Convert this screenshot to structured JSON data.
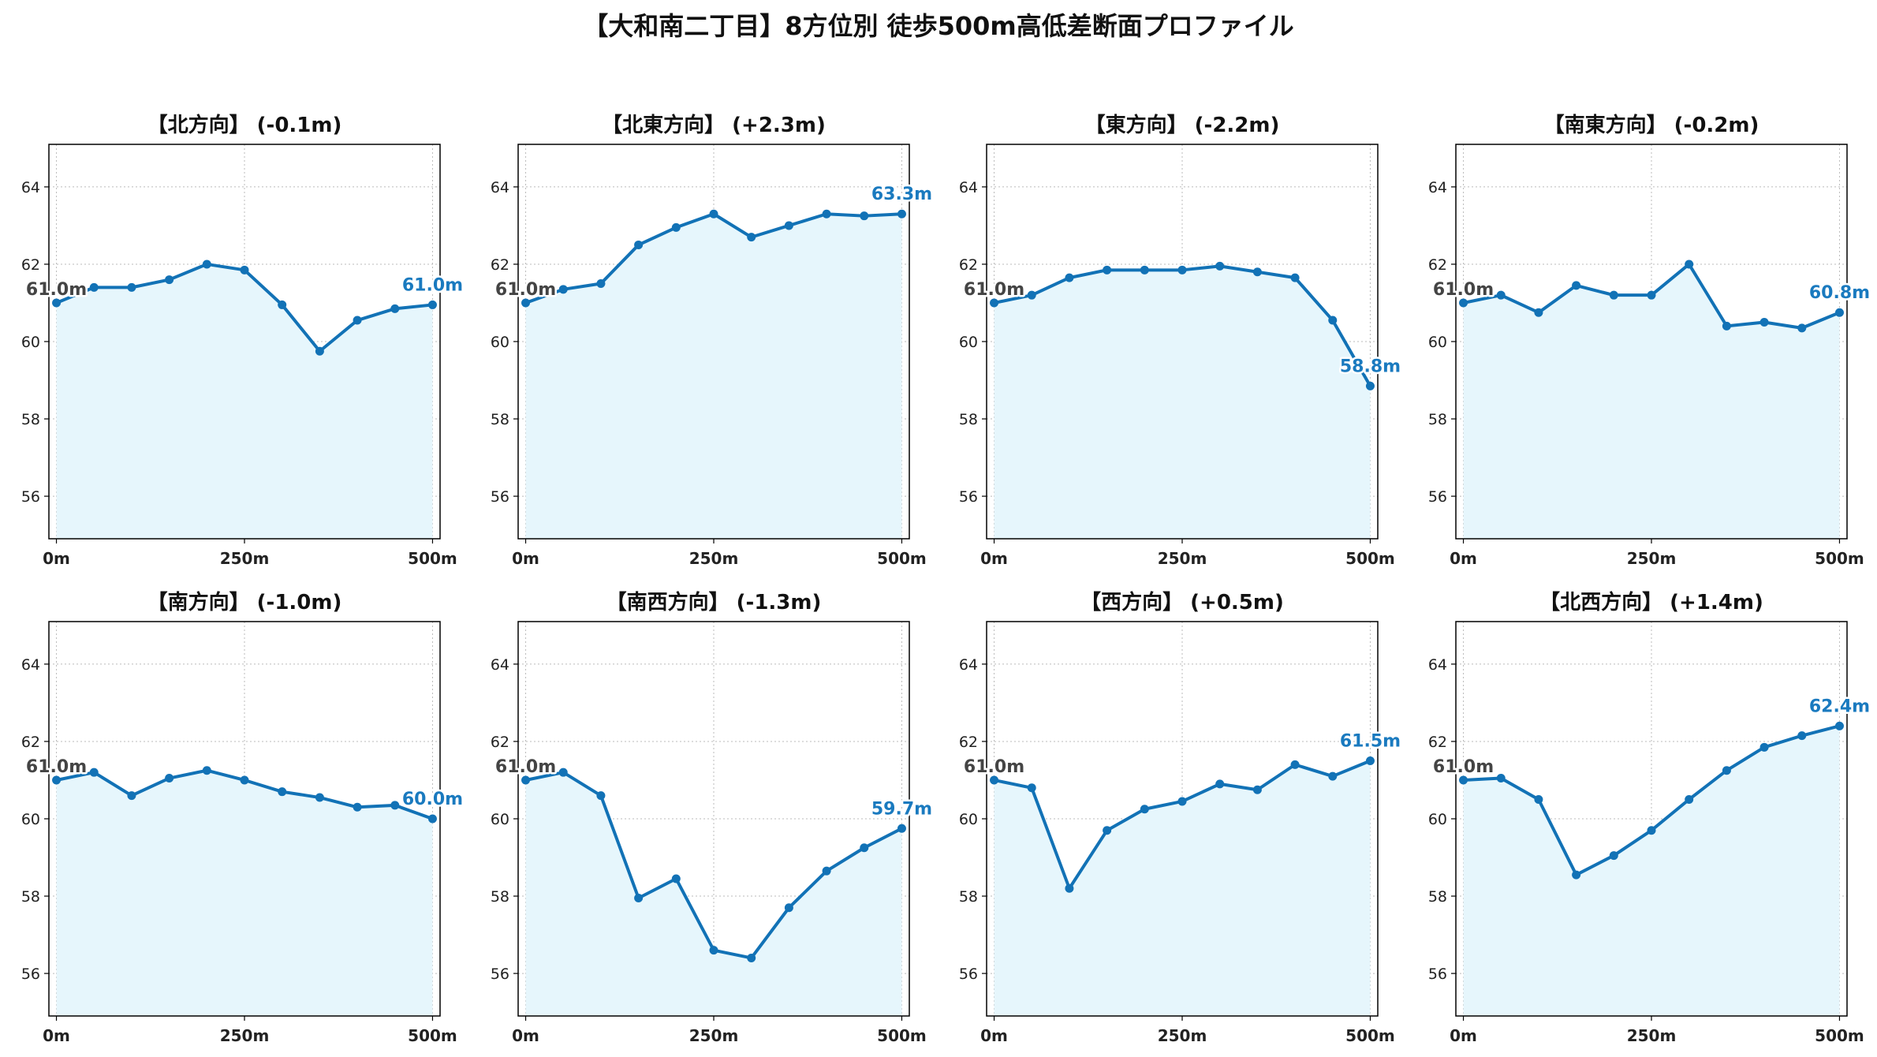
{
  "title": "【大和南二丁目】8方位別 徒歩500m高低差断面プロファイル",
  "colors": {
    "line": "#1272b6",
    "fill": "#e6f6fc",
    "grid": "#bbbbbb",
    "start_label": "#444444",
    "end_label": "#1a7abf"
  },
  "chart_data": [
    {
      "type": "area",
      "title": "【北方向】 (-0.1m)",
      "x": [
        0,
        50,
        100,
        150,
        200,
        250,
        300,
        350,
        400,
        450,
        500
      ],
      "y": [
        61.0,
        61.4,
        61.4,
        61.6,
        62.0,
        61.85,
        60.95,
        59.75,
        60.55,
        60.85,
        60.95
      ],
      "start_label": "61.0m",
      "end_label": "61.0m",
      "xticks": [
        0,
        250,
        500
      ],
      "xtick_labels": [
        "0m",
        "250m",
        "500m"
      ],
      "yticks": [
        56,
        58,
        60,
        62,
        64
      ],
      "ylim": [
        54.9,
        65.1
      ],
      "xlim": [
        -10,
        510
      ],
      "grid": true
    },
    {
      "type": "area",
      "title": "【北東方向】 (+2.3m)",
      "x": [
        0,
        50,
        100,
        150,
        200,
        250,
        300,
        350,
        400,
        450,
        500
      ],
      "y": [
        61.0,
        61.35,
        61.5,
        62.5,
        62.95,
        63.3,
        62.7,
        63.0,
        63.3,
        63.25,
        63.3
      ],
      "start_label": "61.0m",
      "end_label": "63.3m",
      "xticks": [
        0,
        250,
        500
      ],
      "xtick_labels": [
        "0m",
        "250m",
        "500m"
      ],
      "yticks": [
        56,
        58,
        60,
        62,
        64
      ],
      "ylim": [
        54.9,
        65.1
      ],
      "xlim": [
        -10,
        510
      ],
      "grid": true
    },
    {
      "type": "area",
      "title": "【東方向】 (-2.2m)",
      "x": [
        0,
        50,
        100,
        150,
        200,
        250,
        300,
        350,
        400,
        450,
        500
      ],
      "y": [
        61.0,
        61.2,
        61.65,
        61.85,
        61.85,
        61.85,
        61.95,
        61.8,
        61.65,
        60.55,
        58.85
      ],
      "start_label": "61.0m",
      "end_label": "58.8m",
      "xticks": [
        0,
        250,
        500
      ],
      "xtick_labels": [
        "0m",
        "250m",
        "500m"
      ],
      "yticks": [
        56,
        58,
        60,
        62,
        64
      ],
      "ylim": [
        54.9,
        65.1
      ],
      "xlim": [
        -10,
        510
      ],
      "grid": true
    },
    {
      "type": "area",
      "title": "【南東方向】 (-0.2m)",
      "x": [
        0,
        50,
        100,
        150,
        200,
        250,
        300,
        350,
        400,
        450,
        500
      ],
      "y": [
        61.0,
        61.2,
        60.75,
        61.45,
        61.2,
        61.2,
        62.0,
        60.4,
        60.5,
        60.35,
        60.75
      ],
      "start_label": "61.0m",
      "end_label": "60.8m",
      "xticks": [
        0,
        250,
        500
      ],
      "xtick_labels": [
        "0m",
        "250m",
        "500m"
      ],
      "yticks": [
        56,
        58,
        60,
        62,
        64
      ],
      "ylim": [
        54.9,
        65.1
      ],
      "xlim": [
        -10,
        510
      ],
      "grid": true
    },
    {
      "type": "area",
      "title": "【南方向】 (-1.0m)",
      "x": [
        0,
        50,
        100,
        150,
        200,
        250,
        300,
        350,
        400,
        450,
        500
      ],
      "y": [
        61.0,
        61.2,
        60.6,
        61.05,
        61.25,
        61.0,
        60.7,
        60.55,
        60.3,
        60.35,
        60.0
      ],
      "start_label": "61.0m",
      "end_label": "60.0m",
      "xticks": [
        0,
        250,
        500
      ],
      "xtick_labels": [
        "0m",
        "250m",
        "500m"
      ],
      "yticks": [
        56,
        58,
        60,
        62,
        64
      ],
      "ylim": [
        54.9,
        65.1
      ],
      "xlim": [
        -10,
        510
      ],
      "grid": true
    },
    {
      "type": "area",
      "title": "【南西方向】 (-1.3m)",
      "x": [
        0,
        50,
        100,
        150,
        200,
        250,
        300,
        350,
        400,
        450,
        500
      ],
      "y": [
        61.0,
        61.2,
        60.6,
        57.95,
        58.45,
        56.6,
        56.4,
        57.7,
        58.65,
        59.25,
        59.75
      ],
      "start_label": "61.0m",
      "end_label": "59.7m",
      "xticks": [
        0,
        250,
        500
      ],
      "xtick_labels": [
        "0m",
        "250m",
        "500m"
      ],
      "yticks": [
        56,
        58,
        60,
        62,
        64
      ],
      "ylim": [
        54.9,
        65.1
      ],
      "xlim": [
        -10,
        510
      ],
      "grid": true
    },
    {
      "type": "area",
      "title": "【西方向】 (+0.5m)",
      "x": [
        0,
        50,
        100,
        150,
        200,
        250,
        300,
        350,
        400,
        450,
        500
      ],
      "y": [
        61.0,
        60.8,
        58.2,
        59.7,
        60.25,
        60.45,
        60.9,
        60.75,
        61.4,
        61.1,
        61.5
      ],
      "start_label": "61.0m",
      "end_label": "61.5m",
      "xticks": [
        0,
        250,
        500
      ],
      "xtick_labels": [
        "0m",
        "250m",
        "500m"
      ],
      "yticks": [
        56,
        58,
        60,
        62,
        64
      ],
      "ylim": [
        54.9,
        65.1
      ],
      "xlim": [
        -10,
        510
      ],
      "grid": true
    },
    {
      "type": "area",
      "title": "【北西方向】 (+1.4m)",
      "x": [
        0,
        50,
        100,
        150,
        200,
        250,
        300,
        350,
        400,
        450,
        500
      ],
      "y": [
        61.0,
        61.05,
        60.5,
        58.55,
        59.05,
        59.7,
        60.5,
        61.25,
        61.85,
        62.15,
        62.4
      ],
      "start_label": "61.0m",
      "end_label": "62.4m",
      "xticks": [
        0,
        250,
        500
      ],
      "xtick_labels": [
        "0m",
        "250m",
        "500m"
      ],
      "yticks": [
        56,
        58,
        60,
        62,
        64
      ],
      "ylim": [
        54.9,
        65.1
      ],
      "xlim": [
        -10,
        510
      ],
      "grid": true
    }
  ]
}
